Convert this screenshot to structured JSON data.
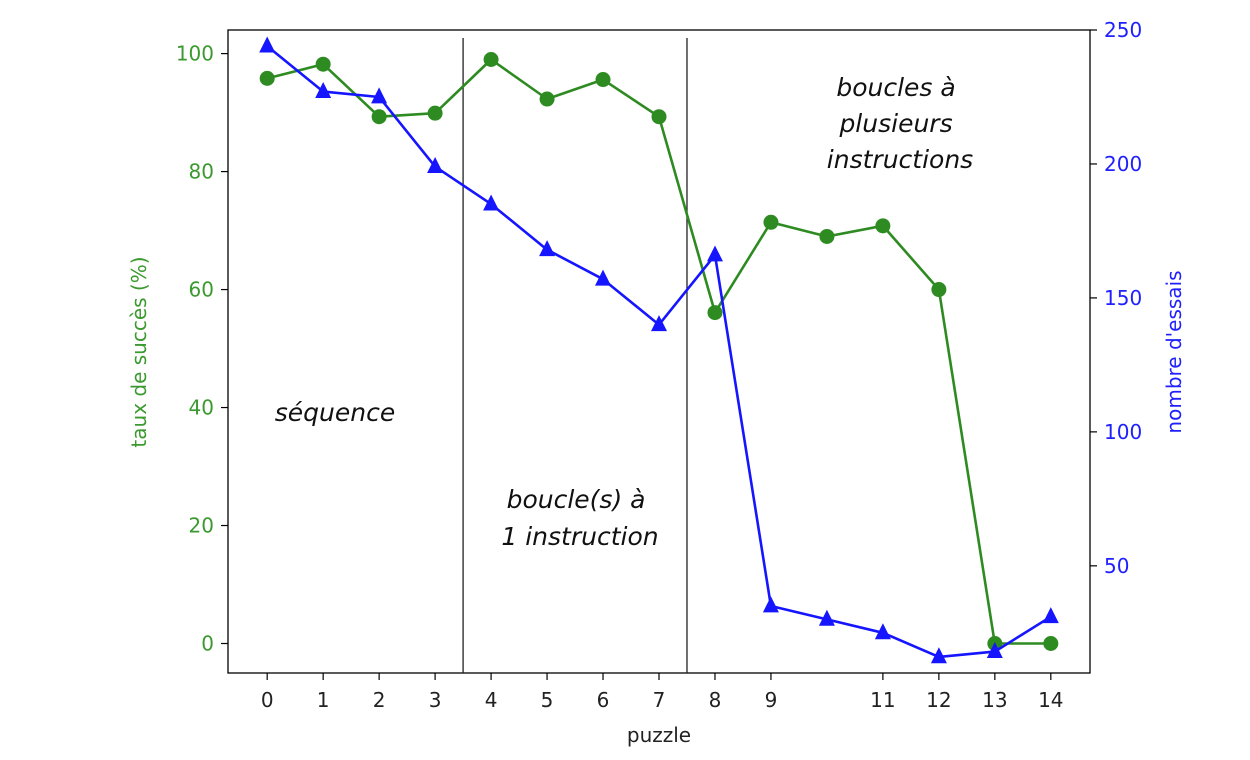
{
  "chart_data": {
    "type": "line",
    "xlabel": "puzzle",
    "ylabel_left": "taux de succès (%)",
    "ylabel_right": "nombre d'essais",
    "x_ticks": [
      0,
      1,
      2,
      3,
      4,
      5,
      6,
      7,
      8,
      9,
      11,
      12,
      13,
      14
    ],
    "xlim": [
      -0.7,
      14.7
    ],
    "left_axis": {
      "ylim": [
        -5,
        104
      ],
      "ticks": [
        0,
        20,
        40,
        60,
        80,
        100
      ]
    },
    "right_axis": {
      "ylim": [
        10,
        250
      ],
      "ticks": [
        50,
        100,
        150,
        200,
        250
      ]
    },
    "series": [
      {
        "axis": "left",
        "marker": "circle",
        "x": [
          0,
          1,
          2,
          3,
          4,
          5,
          6,
          7,
          8,
          9,
          10,
          11,
          12,
          13,
          14
        ],
        "values": [
          95.8,
          98.2,
          89.3,
          89.9,
          99.0,
          92.3,
          95.6,
          89.3,
          56.1,
          71.4,
          69.0,
          70.8,
          60.0,
          0,
          0
        ]
      },
      {
        "axis": "right",
        "marker": "triangle",
        "x": [
          0,
          1,
          2,
          3,
          4,
          5,
          6,
          7,
          8,
          9,
          10,
          11,
          12,
          13,
          14
        ],
        "values": [
          244,
          227,
          225,
          199,
          185,
          168,
          157,
          140,
          166,
          35,
          30,
          25,
          16,
          18,
          31
        ]
      }
    ],
    "separators_x": [
      3.5,
      7.5
    ],
    "annotations": [
      {
        "lines": [
          "séquence"
        ]
      },
      {
        "lines": [
          "boucle(s) à",
          "1 instruction"
        ]
      },
      {
        "lines": [
          "boucles à",
          "plusieurs",
          "instructions"
        ]
      }
    ],
    "colors": {
      "green": "#2e8b22",
      "blue": "#1515ff",
      "left_tick": "#3b9a2f",
      "right_tick": "#2020ff",
      "text": "#222222"
    }
  }
}
